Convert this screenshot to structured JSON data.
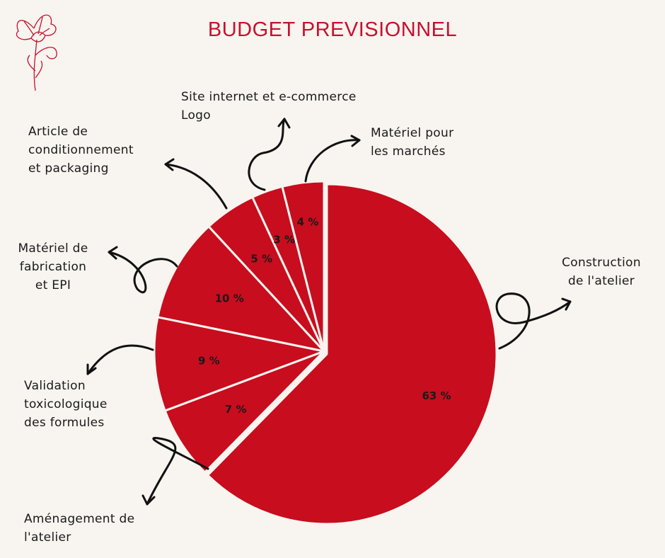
{
  "title": "BUDGET PREVISIONNEL",
  "colors": {
    "slice": "#c80d1e",
    "title": "#c8102e",
    "background": "#f8f4ef",
    "separator": "#f8f4ef",
    "arrow": "#111111"
  },
  "chart_data": {
    "type": "pie",
    "title": "BUDGET PREVISIONNEL",
    "slices": [
      {
        "label": [
          "Construction",
          "de l'atelier"
        ],
        "value": 63,
        "value_label": "63 %"
      },
      {
        "label": [
          "Aménagement de",
          "l'atelier"
        ],
        "value": 7,
        "value_label": "7 %"
      },
      {
        "label": [
          "Validation",
          "toxicologique",
          "des formules"
        ],
        "value": 9,
        "value_label": "9 %"
      },
      {
        "label": [
          "Matériel de",
          "fabrication",
          "et EPI"
        ],
        "value": 10,
        "value_label": "10 %"
      },
      {
        "label": [
          "Article de",
          "conditionnement",
          "et packaging"
        ],
        "value": 5,
        "value_label": "5 %"
      },
      {
        "label": [
          "Site internet et e-commerce",
          "Logo"
        ],
        "value": 3,
        "value_label": "3 %"
      },
      {
        "label": [
          "Matériel pour",
          "les marchés"
        ],
        "value": 4,
        "value_label": "4 %"
      }
    ]
  }
}
